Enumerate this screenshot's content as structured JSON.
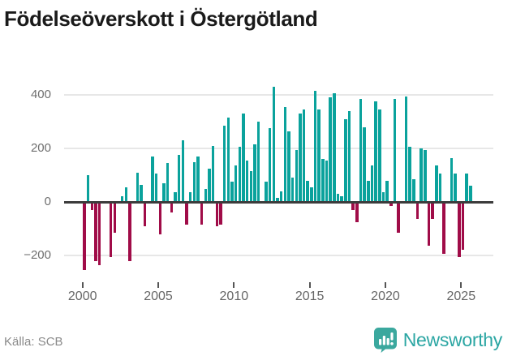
{
  "title": "Födelseöverskott i Östergötland",
  "source": "Källa: SCB",
  "brand": {
    "name": "Newsworthy"
  },
  "colors": {
    "positive": "#0aa29c",
    "negative": "#a00c48",
    "zero_axis": "#3c3c3c",
    "grid": "#e7e7e7",
    "axis_text": "#6e6e6e",
    "title_text": "#1a1a1a",
    "source_text": "#8a8a8a",
    "brand_teal": "#2ba6a3"
  },
  "chart_data": {
    "type": "bar",
    "title": "Födelseöverskott i Östergötland",
    "frequency": "quarterly",
    "start": "2000-Q1",
    "end": "2025-Q3",
    "x_ticks": [
      2000,
      2005,
      2010,
      2015,
      2020,
      2025
    ],
    "y_ticks": [
      {
        "label": "400",
        "value": 400
      },
      {
        "label": "200",
        "value": 200
      },
      {
        "label": "0",
        "value": 0
      },
      {
        "label": "−200",
        "value": -200
      }
    ],
    "ylim": [
      -290,
      480
    ],
    "grid": true,
    "legend": false,
    "series": [
      {
        "name": "Födelseöverskott",
        "years": [
          {
            "year": 2000,
            "q": [
              -255,
              100,
              -30,
              -220
            ]
          },
          {
            "year": 2001,
            "q": [
              -235,
              0,
              0,
              -205
            ]
          },
          {
            "year": 2002,
            "q": [
              -115,
              0,
              20,
              55
            ]
          },
          {
            "year": 2003,
            "q": [
              -220,
              0,
              110,
              65
            ]
          },
          {
            "year": 2004,
            "q": [
              -90,
              0,
              170,
              105
            ]
          },
          {
            "year": 2005,
            "q": [
              -120,
              70,
              145,
              -40
            ]
          },
          {
            "year": 2006,
            "q": [
              35,
              175,
              230,
              -85
            ]
          },
          {
            "year": 2007,
            "q": [
              35,
              150,
              170,
              -85
            ]
          },
          {
            "year": 2008,
            "q": [
              50,
              125,
              210,
              -90
            ]
          },
          {
            "year": 2009,
            "q": [
              -85,
              285,
              315,
              75
            ]
          },
          {
            "year": 2010,
            "q": [
              135,
              205,
              330,
              155
            ]
          },
          {
            "year": 2011,
            "q": [
              115,
              215,
              300,
              0
            ]
          },
          {
            "year": 2012,
            "q": [
              75,
              275,
              430,
              15
            ]
          },
          {
            "year": 2013,
            "q": [
              40,
              355,
              265,
              90
            ]
          },
          {
            "year": 2014,
            "q": [
              195,
              330,
              345,
              80
            ]
          },
          {
            "year": 2015,
            "q": [
              55,
              415,
              345,
              160
            ]
          },
          {
            "year": 2016,
            "q": [
              155,
              390,
              405,
              30
            ]
          },
          {
            "year": 2017,
            "q": [
              20,
              310,
              340,
              -30
            ]
          },
          {
            "year": 2018,
            "q": [
              -75,
              385,
              280,
              80
            ]
          },
          {
            "year": 2019,
            "q": [
              135,
              375,
              345,
              35
            ]
          },
          {
            "year": 2020,
            "q": [
              80,
              -15,
              385,
              -115
            ]
          },
          {
            "year": 2021,
            "q": [
              0,
              395,
              205,
              85
            ]
          },
          {
            "year": 2022,
            "q": [
              -65,
              200,
              195,
              -165
            ]
          },
          {
            "year": 2023,
            "q": [
              -65,
              135,
              105,
              -195
            ]
          },
          {
            "year": 2024,
            "q": [
              0,
              165,
              105,
              -205
            ]
          },
          {
            "year": 2025,
            "q": [
              -180,
              105,
              60
            ]
          }
        ]
      }
    ]
  }
}
